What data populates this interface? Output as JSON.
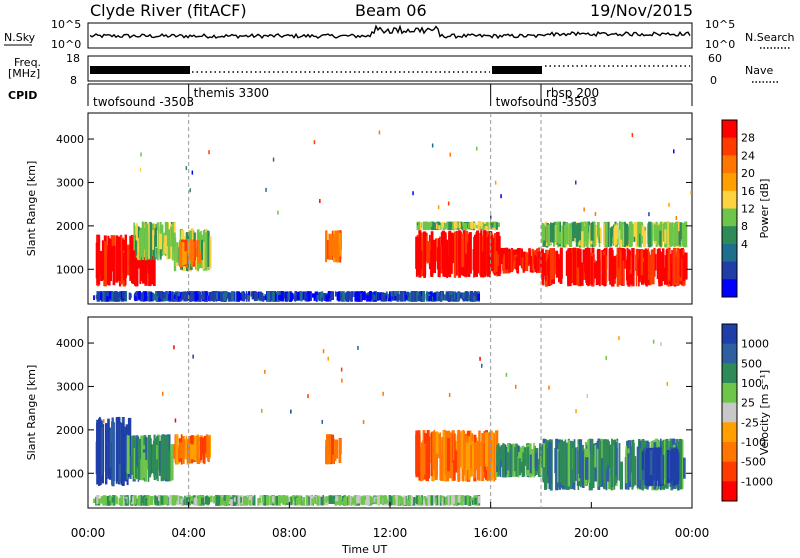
{
  "header": {
    "station": "Clyde River (fitACF)",
    "beam": "Beam 06",
    "date": "19/Nov/2015"
  },
  "noise_panel": {
    "left_label": "N.Sky",
    "left_ticks": [
      "10^5",
      "10^0"
    ],
    "right_label": "N.Search",
    "right_ticks": [
      "10^5",
      "10^0"
    ]
  },
  "freq_panel": {
    "left_label_1": "Freq.",
    "left_label_2": "[MHz]",
    "left_ticks": [
      "18",
      "8"
    ],
    "right_label": "Nave",
    "right_ticks": [
      "60",
      "0"
    ]
  },
  "cpid_panel": {
    "label": "CPID",
    "segments": [
      {
        "name": "twofsound -3503",
        "start_hour": 0.0
      },
      {
        "name": "themis 3300",
        "start_hour": 4.0
      },
      {
        "name": "twofsound -3503",
        "start_hour": 16.0
      },
      {
        "name": "rbsp 200",
        "start_hour": 18.0
      }
    ]
  },
  "chart_data": [
    {
      "type": "heatmap",
      "title": "",
      "xlabel": "",
      "ylabel": "Slant Range [km]",
      "xlim": [
        0,
        24
      ],
      "ylim": [
        200,
        4600
      ],
      "yticks": [
        1000,
        2000,
        3000,
        4000
      ],
      "colorbar": {
        "label": "Power [dB]",
        "ticks": [
          "28",
          "24",
          "20",
          "16",
          "12",
          "8",
          "4"
        ],
        "colors": [
          "#ff0000",
          "#ff3b00",
          "#ff7700",
          "#ff9f00",
          "#ffd23f",
          "#6dc64a",
          "#2e8b57",
          "#1e6e8e",
          "#1f3ea8",
          "#0000ff"
        ]
      },
      "series": [
        {
          "t0": 0.3,
          "t1": 2.6,
          "r0": 600,
          "r1": 1800,
          "value_class": 0
        },
        {
          "t0": 1.8,
          "t1": 3.4,
          "r0": 1200,
          "r1": 2100,
          "value_class": 5
        },
        {
          "t0": 3.4,
          "t1": 4.8,
          "r0": 950,
          "r1": 1950,
          "value_class": 5
        },
        {
          "t0": 3.6,
          "t1": 4.4,
          "r0": 1050,
          "r1": 1700,
          "value_class": 2
        },
        {
          "t0": 9.4,
          "t1": 10.0,
          "r0": 1150,
          "r1": 1900,
          "value_class": 2
        },
        {
          "t0": 13.0,
          "t1": 16.3,
          "r0": 800,
          "r1": 1900,
          "value_class": 0
        },
        {
          "t0": 13.0,
          "t1": 16.3,
          "r0": 1900,
          "r1": 2100,
          "value_class": 5
        },
        {
          "t0": 16.2,
          "t1": 18.0,
          "r0": 900,
          "r1": 1500,
          "value_class": 0
        },
        {
          "t0": 18.0,
          "t1": 23.7,
          "r0": 600,
          "r1": 1500,
          "value_class": 0
        },
        {
          "t0": 18.0,
          "t1": 23.7,
          "r0": 1500,
          "r1": 2100,
          "value_class": 5
        },
        {
          "t0": 0.2,
          "t1": 15.5,
          "r0": 250,
          "r1": 500,
          "value_class": 8
        }
      ]
    },
    {
      "type": "heatmap",
      "title": "",
      "xlabel": "Time UT",
      "ylabel": "Slant Range [km]",
      "xlim": [
        0,
        24
      ],
      "ylim": [
        200,
        4600
      ],
      "yticks": [
        1000,
        2000,
        3000,
        4000
      ],
      "xticks": [
        "00:00",
        "04:00",
        "08:00",
        "12:00",
        "16:00",
        "20:00",
        "00:00"
      ],
      "colorbar": {
        "label": "Velocity [m s⁻¹]",
        "ticks": [
          "1000",
          "500",
          "100",
          "25",
          "-25",
          "-100",
          "-500",
          "-1000"
        ],
        "colors": [
          "#1f3ea8",
          "#2e5fa0",
          "#2e8b57",
          "#6dc64a",
          "#c8c8c8",
          "#ff9f00",
          "#ff7700",
          "#ff3b00",
          "#ff0000"
        ]
      },
      "series": [
        {
          "t0": 0.3,
          "t1": 1.6,
          "r0": 700,
          "r1": 2300,
          "value_class": 0
        },
        {
          "t0": 1.5,
          "t1": 3.3,
          "r0": 800,
          "r1": 1900,
          "value_class": 2
        },
        {
          "t0": 3.3,
          "t1": 4.8,
          "r0": 1200,
          "r1": 1900,
          "value_class": 6
        },
        {
          "t0": 9.4,
          "t1": 10.0,
          "r0": 1200,
          "r1": 1900,
          "value_class": 6
        },
        {
          "t0": 13.0,
          "t1": 16.2,
          "r0": 800,
          "r1": 2000,
          "value_class": 6
        },
        {
          "t0": 16.2,
          "t1": 18.0,
          "r0": 900,
          "r1": 1700,
          "value_class": 2
        },
        {
          "t0": 18.0,
          "t1": 23.7,
          "r0": 600,
          "r1": 1800,
          "value_class": 2
        },
        {
          "t0": 22.0,
          "t1": 23.4,
          "r0": 700,
          "r1": 1600,
          "value_class": 0
        },
        {
          "t0": 0.2,
          "t1": 15.5,
          "r0": 250,
          "r1": 500,
          "value_class": 3
        }
      ]
    }
  ]
}
